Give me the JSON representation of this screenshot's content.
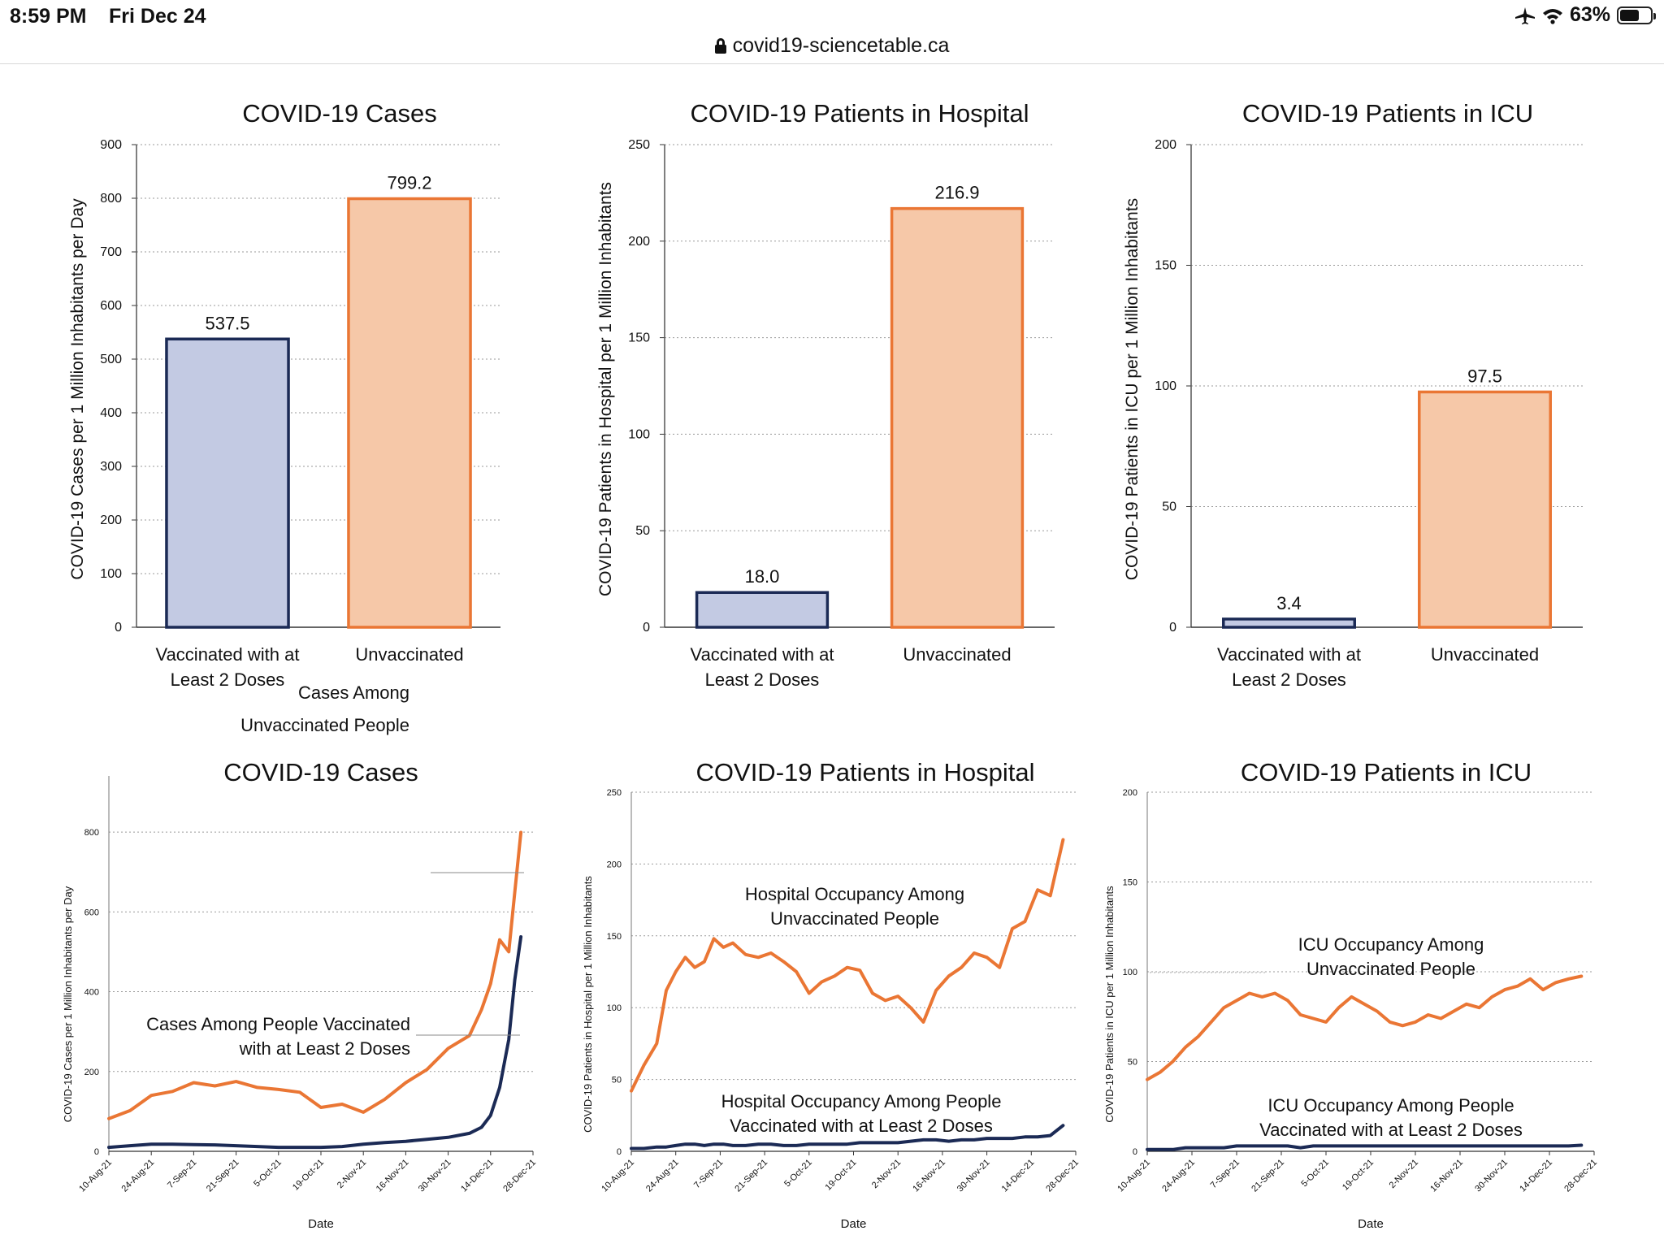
{
  "status_bar": {
    "time": "8:59 PM",
    "date": "Fri Dec 24",
    "battery": "63%",
    "battery_level": 0.63
  },
  "address_bar": {
    "url": "covid19-sciencetable.ca"
  },
  "colors": {
    "vaccinated": "#1b2a55",
    "vaccinated_fill": "#c3cae3",
    "unvaccinated": "#ea7634",
    "unvaccinated_fill": "#f6c8a8",
    "grid": "#9a9a9a"
  },
  "chart_data": [
    {
      "type": "bar",
      "title": "COVID-19 Cases",
      "ylabel": "COVID-19 Cases per 1 Million Inhabitants per Day",
      "ylim": [
        0,
        900
      ],
      "yticks": [
        0,
        100,
        200,
        300,
        400,
        500,
        600,
        700,
        800,
        900
      ],
      "categories": [
        "Vaccinated with at Least 2 Doses",
        "Unvaccinated"
      ],
      "category_lines": [
        [
          "Vaccinated with at",
          "Least 2 Doses"
        ],
        [
          "Unvaccinated"
        ]
      ],
      "values": [
        537.5,
        799.2
      ],
      "value_labels": [
        "537.5",
        "799.2"
      ]
    },
    {
      "type": "bar",
      "title": "COVID-19 Patients in Hospital",
      "ylabel": "COVID-19 Patients in Hospital per 1 Million Inhabitants",
      "ylim": [
        0,
        250
      ],
      "yticks": [
        0,
        50,
        100,
        150,
        200,
        250
      ],
      "categories": [
        "Vaccinated with at Least 2 Doses",
        "Unvaccinated"
      ],
      "category_lines": [
        [
          "Vaccinated with at",
          "Least 2 Doses"
        ],
        [
          "Unvaccinated"
        ]
      ],
      "values": [
        18.0,
        216.9
      ],
      "value_labels": [
        "18.0",
        "216.9"
      ]
    },
    {
      "type": "bar",
      "title": "COVID-19 Patients in ICU",
      "ylabel": "COVID-19 Patients in ICU  per 1 Million Inhabitants",
      "ylim": [
        0,
        200
      ],
      "yticks": [
        0,
        50,
        100,
        150,
        200
      ],
      "categories": [
        "Vaccinated with at Least 2 Doses",
        "Unvaccinated"
      ],
      "category_lines": [
        [
          "Vaccinated with at",
          "Least 2 Doses"
        ],
        [
          "Unvaccinated"
        ]
      ],
      "values": [
        3.4,
        97.5
      ],
      "value_labels": [
        "3.4",
        "97.5"
      ]
    },
    {
      "type": "line",
      "title": "COVID-19 Cases",
      "ylabel": "COVID-19 Cases per 1 Million Inhabitants per Day",
      "xlabel": "Date",
      "ylim": [
        0,
        900
      ],
      "yticks": [
        0,
        200,
        400,
        600,
        800
      ],
      "xlim": [
        0,
        140
      ],
      "x_tick_positions": [
        0,
        14,
        28,
        42,
        56,
        70,
        84,
        98,
        112,
        126,
        140
      ],
      "x_tick_labels": [
        "10-Aug-21",
        "24-Aug-21",
        "7-Sep-21",
        "21-Sep-21",
        "5-Oct-21",
        "19-Oct-21",
        "2-Nov-21",
        "16-Nov-21",
        "30-Nov-21",
        "14-Dec-21",
        "28-Dec-21"
      ],
      "x_days": [
        0,
        7,
        14,
        21,
        28,
        35,
        42,
        49,
        56,
        63,
        70,
        77,
        84,
        91,
        98,
        105,
        112,
        119,
        123,
        126,
        129,
        132,
        134,
        136
      ],
      "series": [
        {
          "name": "Cases Among Unvaccinated People",
          "label_lines": [
            "Cases Among",
            "Unvaccinated People"
          ],
          "values": [
            82,
            102,
            140,
            150,
            172,
            164,
            175,
            160,
            155,
            148,
            110,
            118,
            98,
            130,
            172,
            205,
            258,
            290,
            355,
            420,
            530,
            500,
            650,
            799.2
          ]
        },
        {
          "name": "Cases Among People Vaccinated with at Least 2 Doses",
          "label_lines": [
            "Cases Among People Vaccinated",
            "with at Least 2 Doses"
          ],
          "values": [
            10,
            14,
            18,
            18,
            17,
            16,
            14,
            12,
            10,
            10,
            10,
            12,
            18,
            22,
            25,
            30,
            35,
            45,
            60,
            90,
            160,
            280,
            430,
            537.5
          ]
        }
      ]
    },
    {
      "type": "line",
      "title": "COVID-19 Patients in Hospital",
      "ylabel": "COVID-19 Patients in Hospital per 1 Million Inhabitants",
      "xlabel": "Date",
      "ylim": [
        0,
        250
      ],
      "yticks": [
        0,
        50,
        100,
        150,
        200,
        250
      ],
      "xlim": [
        0,
        140
      ],
      "x_tick_positions": [
        0,
        14,
        28,
        42,
        56,
        70,
        84,
        98,
        112,
        126,
        140
      ],
      "x_tick_labels": [
        "10-Aug-21",
        "24-Aug-21",
        "7-Sep-21",
        "21-Sep-21",
        "5-Oct-21",
        "19-Oct-21",
        "2-Nov-21",
        "16-Nov-21",
        "30-Nov-21",
        "14-Dec-21",
        "28-Dec-21"
      ],
      "x_days": [
        0,
        4,
        8,
        11,
        14,
        17,
        20,
        23,
        26,
        29,
        32,
        36,
        40,
        44,
        48,
        52,
        56,
        60,
        64,
        68,
        72,
        76,
        80,
        84,
        88,
        92,
        96,
        100,
        104,
        108,
        112,
        116,
        120,
        124,
        128,
        132,
        136
      ],
      "series": [
        {
          "name": "Hospital Occupancy Among Unvaccinated People",
          "label_lines": [
            "Hospital Occupancy Among",
            "Unvaccinated People"
          ],
          "values": [
            42,
            60,
            75,
            112,
            125,
            135,
            128,
            132,
            148,
            142,
            145,
            137,
            135,
            138,
            132,
            125,
            110,
            118,
            122,
            128,
            126,
            110,
            105,
            108,
            100,
            90,
            112,
            122,
            128,
            138,
            135,
            128,
            155,
            160,
            182,
            178,
            216.9
          ]
        },
        {
          "name": "Hospital Occupancy Among People Vaccinated with at Least 2 Doses",
          "label_lines": [
            "Hospital Occupancy  Among People",
            "Vaccinated with at Least 2 Doses"
          ],
          "values": [
            2,
            2,
            3,
            3,
            4,
            5,
            5,
            4,
            5,
            5,
            4,
            4,
            5,
            5,
            4,
            4,
            5,
            5,
            5,
            5,
            6,
            6,
            6,
            6,
            7,
            8,
            8,
            7,
            8,
            8,
            9,
            9,
            9,
            10,
            10,
            11,
            18.0
          ]
        }
      ]
    },
    {
      "type": "line",
      "title": "COVID-19 Patients in ICU",
      "ylabel": "COVID-19 Patients in ICU  per 1 Million Inhabitants",
      "xlabel": "Date",
      "ylim": [
        0,
        200
      ],
      "yticks": [
        0,
        50,
        100,
        150,
        200
      ],
      "xlim": [
        0,
        140
      ],
      "x_tick_positions": [
        0,
        14,
        28,
        42,
        56,
        70,
        84,
        98,
        112,
        126,
        140
      ],
      "x_tick_labels": [
        "10-Aug-21",
        "24-Aug-21",
        "7-Sep-21",
        "21-Sep-21",
        "5-Oct-21",
        "19-Oct-21",
        "2-Nov-21",
        "16-Nov-21",
        "30-Nov-21",
        "14-Dec-21",
        "28-Dec-21"
      ],
      "x_days": [
        0,
        4,
        8,
        12,
        16,
        20,
        24,
        28,
        32,
        36,
        40,
        44,
        48,
        52,
        56,
        60,
        64,
        68,
        72,
        76,
        80,
        84,
        88,
        92,
        96,
        100,
        104,
        108,
        112,
        116,
        120,
        124,
        128,
        132,
        136
      ],
      "series": [
        {
          "name": "ICU Occupancy Among Unvaccinated People",
          "label_lines": [
            "ICU Occupancy Among",
            "Unvaccinated People"
          ],
          "values": [
            40,
            44,
            50,
            58,
            64,
            72,
            80,
            84,
            88,
            86,
            88,
            84,
            76,
            74,
            72,
            80,
            86,
            82,
            78,
            72,
            70,
            72,
            76,
            74,
            78,
            82,
            80,
            86,
            90,
            92,
            96,
            90,
            94,
            96,
            97.5
          ]
        },
        {
          "name": "ICU Occupancy Among People Vaccinated with at Least 2 Doses",
          "label_lines": [
            "ICU Occupancy Among People",
            "Vaccinated with at Least 2 Doses"
          ],
          "values": [
            1,
            1,
            1,
            2,
            2,
            2,
            2,
            3,
            3,
            3,
            3,
            3,
            2,
            3,
            3,
            3,
            3,
            3,
            3,
            3,
            3,
            3,
            3,
            3,
            3,
            3,
            3,
            3,
            3,
            3,
            3,
            3,
            3,
            3,
            3.4
          ]
        }
      ]
    }
  ]
}
